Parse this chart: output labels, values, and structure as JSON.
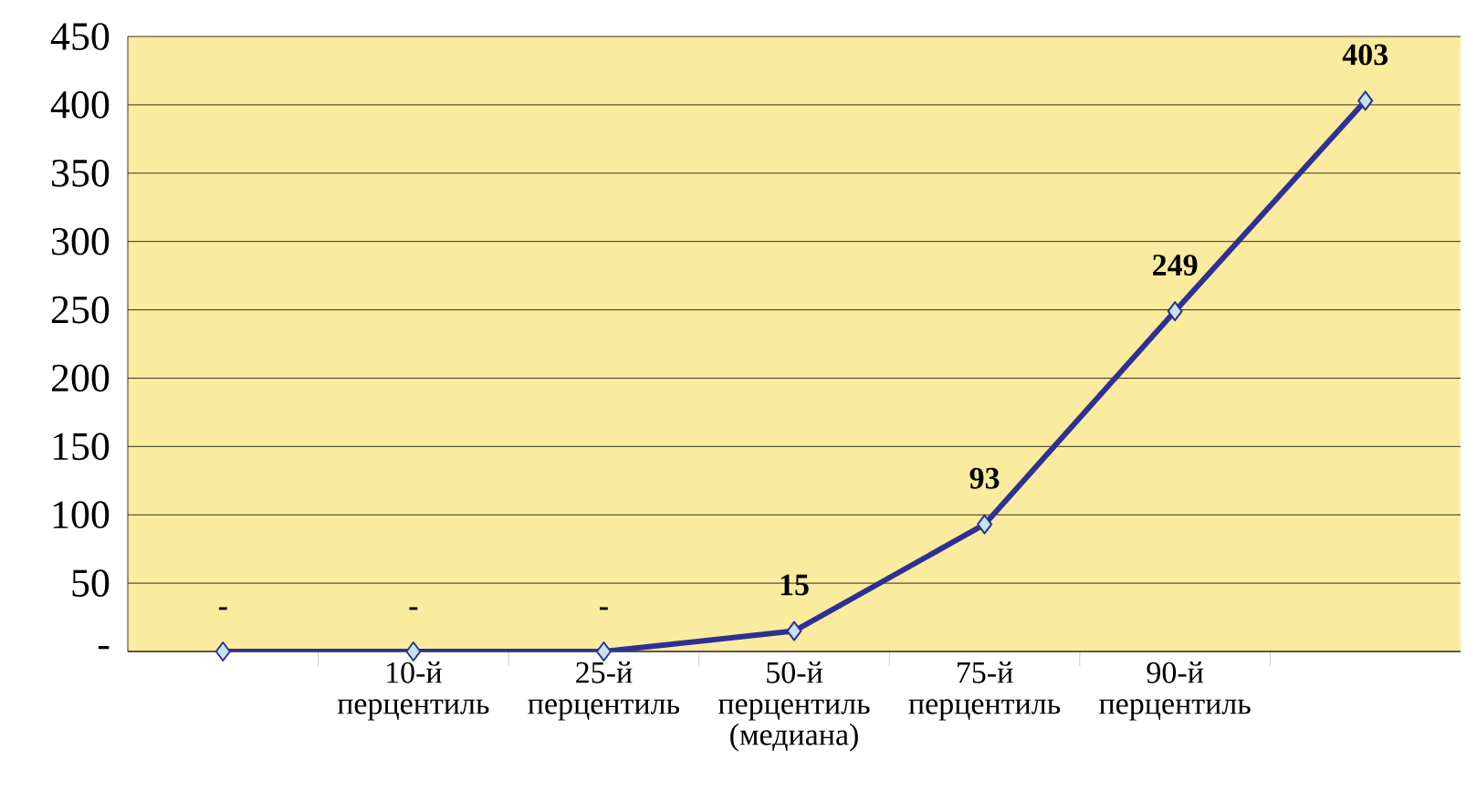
{
  "chart_data": {
    "type": "line",
    "categories": [
      null,
      "10-й перцентиль",
      "25-й перцентиль",
      "50-й перцентиль (медиана)",
      "75-й перцентиль",
      "90-й перцентиль",
      null
    ],
    "series": [
      {
        "color": "#2e3192",
        "values": [
          0,
          0,
          0,
          15,
          93,
          249,
          403
        ],
        "value_labels": [
          "-",
          "-",
          "-",
          "15",
          "93",
          "249",
          "403"
        ]
      }
    ],
    "ylim": [
      0,
      450
    ],
    "yticks": [
      {
        "value": 0,
        "label": "-"
      },
      50,
      100,
      150,
      200,
      250,
      300,
      350,
      400,
      450
    ],
    "grid": "y",
    "marker": "diamond",
    "line_style": "solid"
  }
}
